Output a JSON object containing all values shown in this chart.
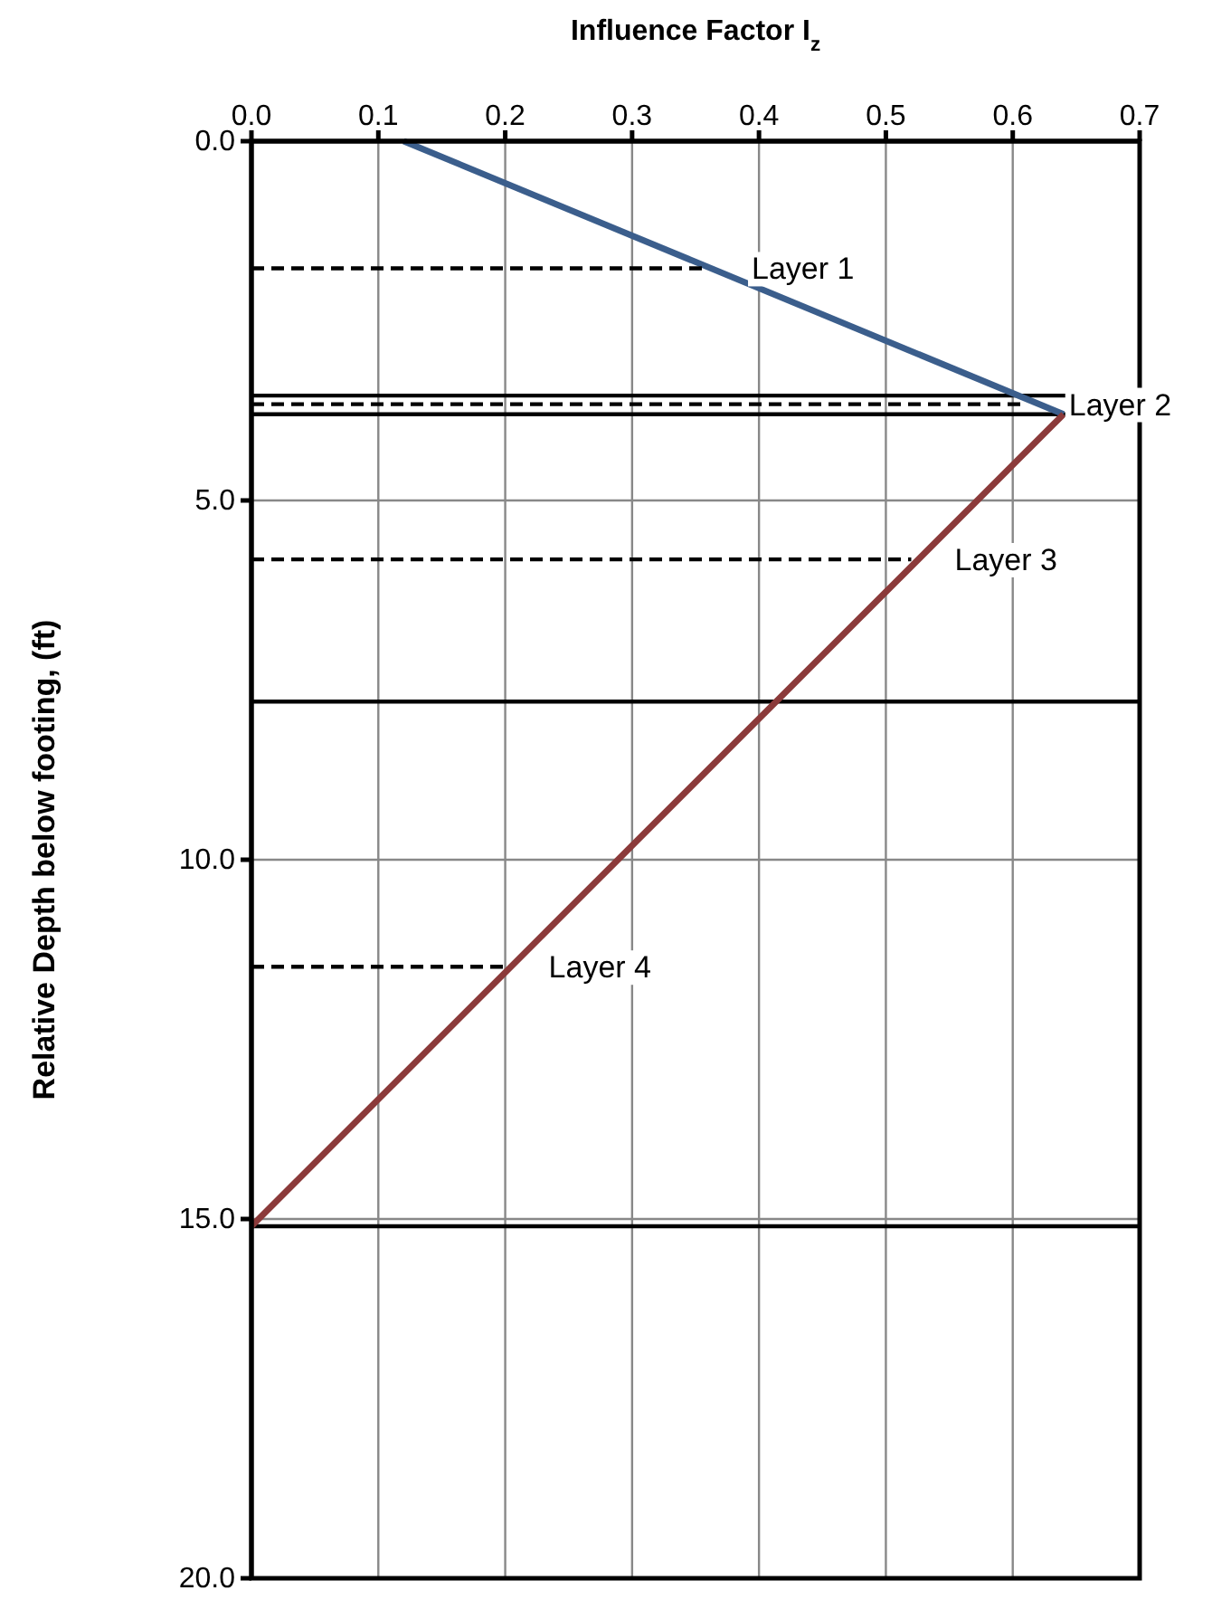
{
  "chart_data": {
    "type": "line",
    "xlabel": "Influence Factor I$_{z}$",
    "ylabel": "Relative Depth below footing, (ft)",
    "xlim": [
      0,
      0.7
    ],
    "xticks": [
      {
        "value": 0,
        "label": "0.0"
      },
      0.1,
      0.2,
      0.3,
      0.4,
      0.5,
      0.6,
      0.7
    ],
    "ylim": [
      20,
      0
    ],
    "yticks": [
      {
        "value": 0,
        "label": "0.0"
      },
      {
        "value": 5,
        "label": "5.0"
      },
      {
        "value": 10,
        "label": "10.0"
      },
      {
        "value": 15,
        "label": "15.0"
      },
      {
        "value": 20,
        "label": "20.0"
      }
    ],
    "grid": true,
    "series": [
      {
        "x": [
          0.12,
          0.64
        ],
        "values": [
          0,
          3.8
        ],
        "color": "#3b5e8c",
        "line_style": "solid"
      },
      {
        "x": [
          0.64,
          0
        ],
        "values": [
          3.8,
          15.1
        ],
        "color": "#8b3a3a",
        "line_style": "solid"
      },
      {
        "x": [
          0,
          0.36
        ],
        "values": [
          1.77,
          1.77
        ],
        "color": "#000000",
        "line_style": "dashed"
      },
      {
        "x": [
          0,
          0.61
        ],
        "values": [
          3.66,
          3.66
        ],
        "color": "#000000",
        "line_style": "dashed"
      },
      {
        "x": [
          0,
          0.52
        ],
        "values": [
          5.82,
          5.82
        ],
        "color": "#000000",
        "line_style": "dashed"
      },
      {
        "x": [
          0,
          0.2
        ],
        "values": [
          11.49,
          11.49
        ],
        "color": "#000000",
        "line_style": "dashed"
      }
    ],
    "ref_lines": [
      {
        "axis": "y",
        "value": 3.54,
        "color": "#000000"
      },
      {
        "axis": "y",
        "value": 3.8,
        "color": "#000000"
      },
      {
        "axis": "y",
        "value": 7.8,
        "color": "#000000"
      },
      {
        "axis": "y",
        "value": 15.1,
        "color": "#000000"
      }
    ],
    "annotations": [
      {
        "text": "Layer 1",
        "x": 0.36,
        "y": 1.77
      },
      {
        "text": "Layer 2",
        "x": 0.61,
        "y": 3.66
      },
      {
        "text": "Layer 3",
        "x": 0.52,
        "y": 5.82
      },
      {
        "text": "Layer 4",
        "x": 0.2,
        "y": 11.49
      }
    ]
  }
}
